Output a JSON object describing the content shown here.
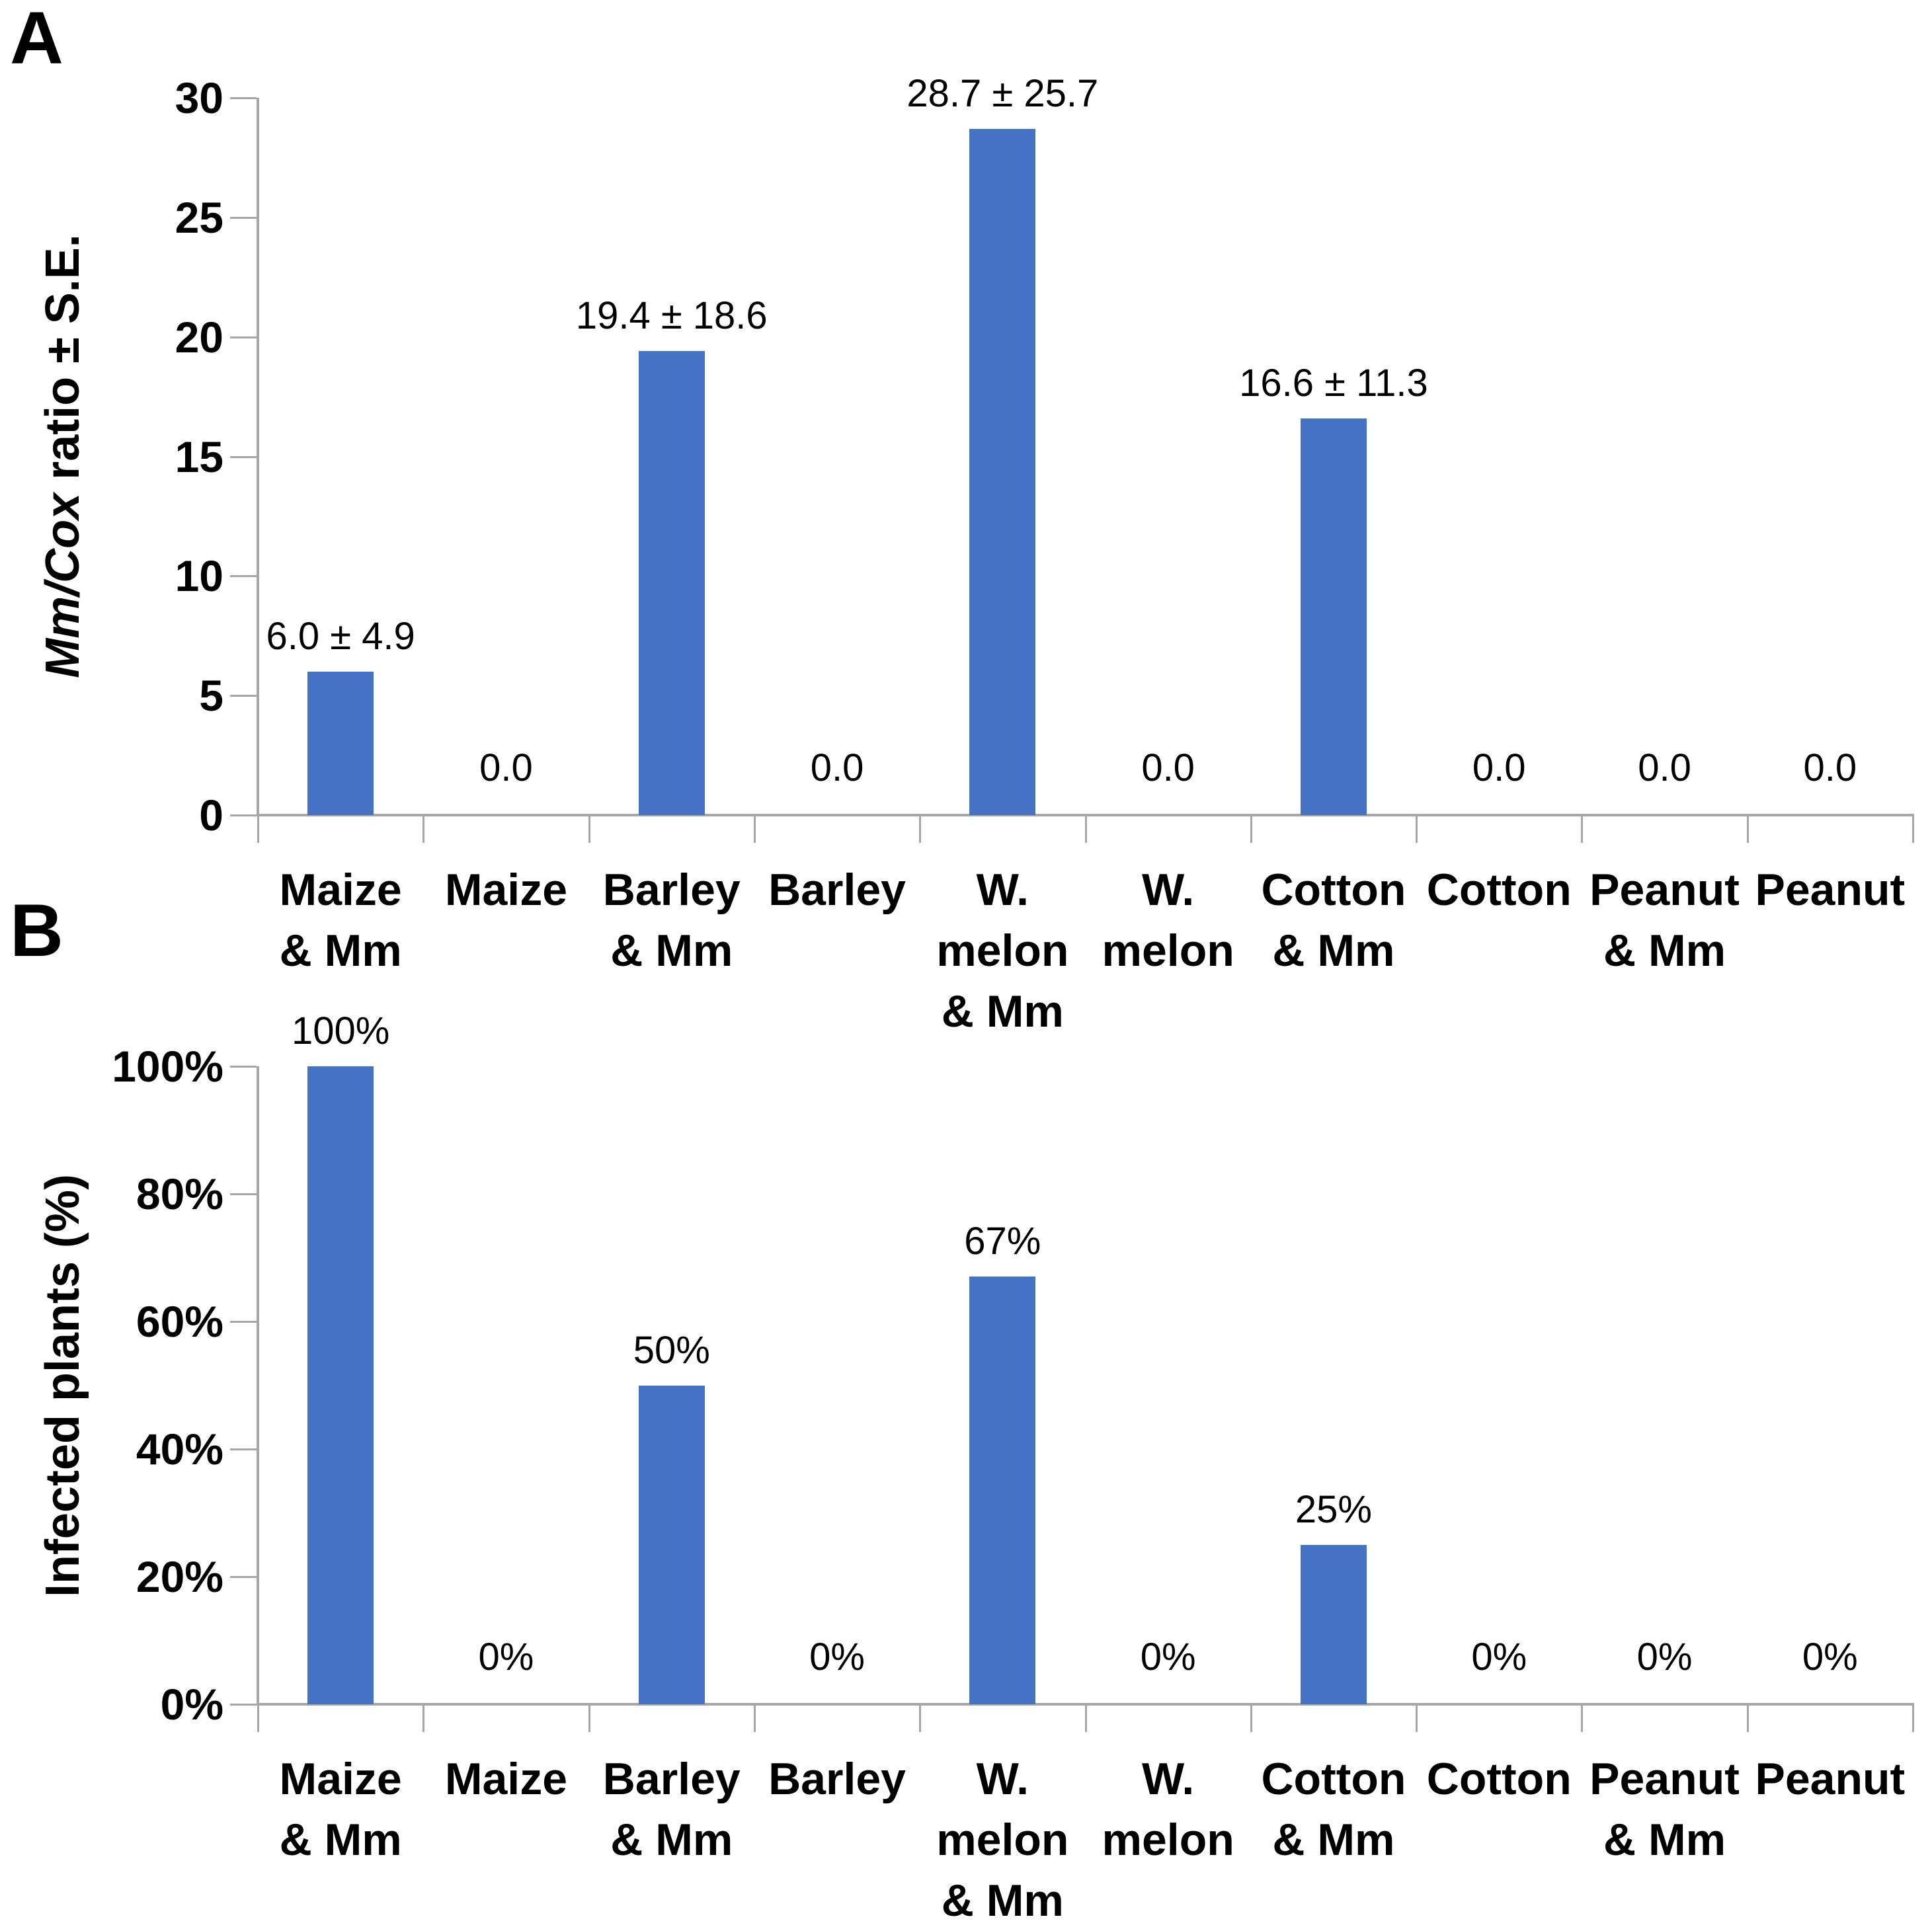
{
  "colors": {
    "bar": "#4472C4",
    "axis": "#A6A6A6",
    "text": "#000000",
    "background": "#ffffff"
  },
  "panels": {
    "a_label": "A",
    "b_label": "B"
  },
  "chart_data": [
    {
      "type": "bar",
      "panel_label": "A",
      "title": "",
      "xlabel": "",
      "ylabel": "Mm/Cox ratio ± S.E.",
      "ylabel_italic_part": "Mm/Cox",
      "ylabel_rest": " ratio ± S.E.",
      "categories": [
        "Maize & Mm",
        "Maize",
        "Barley & Mm",
        "Barley",
        "W. melon & Mm",
        "W. melon",
        "Cotton & Mm",
        "Cotton",
        "Peanut & Mm",
        "Peanut"
      ],
      "category_lines": [
        [
          "Maize",
          "& Mm"
        ],
        [
          "Maize"
        ],
        [
          "Barley",
          "& Mm"
        ],
        [
          "Barley"
        ],
        [
          "W.",
          "melon",
          "& Mm"
        ],
        [
          "W.",
          "melon"
        ],
        [
          "Cotton",
          "& Mm"
        ],
        [
          "Cotton"
        ],
        [
          "Peanut",
          "& Mm"
        ],
        [
          "Peanut"
        ]
      ],
      "values": [
        6.0,
        0.0,
        19.4,
        0.0,
        28.7,
        0.0,
        16.6,
        0.0,
        0.0,
        0.0
      ],
      "data_labels": [
        "6.0 ± 4.9",
        "0.0",
        "19.4 ± 18.6",
        "0.0",
        "28.7 ± 25.7",
        "0.0",
        "16.6 ± 11.3",
        "0.0",
        "0.0",
        "0.0"
      ],
      "ylim": [
        0,
        30
      ],
      "ytick_values": [
        30,
        25,
        20,
        15,
        10,
        5,
        0
      ],
      "ytick_labels": [
        "30",
        "25",
        "20",
        "15",
        "10",
        "5",
        "0"
      ],
      "grid": false,
      "legend": null,
      "bar_color": "#4472C4"
    },
    {
      "type": "bar",
      "panel_label": "B",
      "title": "",
      "xlabel": "",
      "ylabel": "Infected plants (%)",
      "ylabel_italic_part": "",
      "ylabel_rest": "Infected plants (%)",
      "categories": [
        "Maize & Mm",
        "Maize",
        "Barley & Mm",
        "Barley",
        "W. melon & Mm",
        "W. melon",
        "Cotton & Mm",
        "Cotton",
        "Peanut & Mm",
        "Peanut"
      ],
      "category_lines": [
        [
          "Maize",
          "& Mm"
        ],
        [
          "Maize"
        ],
        [
          "Barley",
          "& Mm"
        ],
        [
          "Barley"
        ],
        [
          "W.",
          "melon",
          "& Mm"
        ],
        [
          "W.",
          "melon"
        ],
        [
          "Cotton",
          "& Mm"
        ],
        [
          "Cotton"
        ],
        [
          "Peanut",
          "& Mm"
        ],
        [
          "Peanut"
        ]
      ],
      "values": [
        100,
        0,
        50,
        0,
        67,
        0,
        25,
        0,
        0,
        0
      ],
      "data_labels": [
        "100%",
        "0%",
        "50%",
        "0%",
        "67%",
        "0%",
        "25%",
        "0%",
        "0%",
        "0%"
      ],
      "ylim": [
        0,
        100
      ],
      "ytick_values": [
        100,
        80,
        60,
        40,
        20,
        0
      ],
      "ytick_labels": [
        "100%",
        "80%",
        "60%",
        "40%",
        "20%",
        "0%"
      ],
      "grid": false,
      "legend": null,
      "bar_color": "#4472C4"
    }
  ]
}
